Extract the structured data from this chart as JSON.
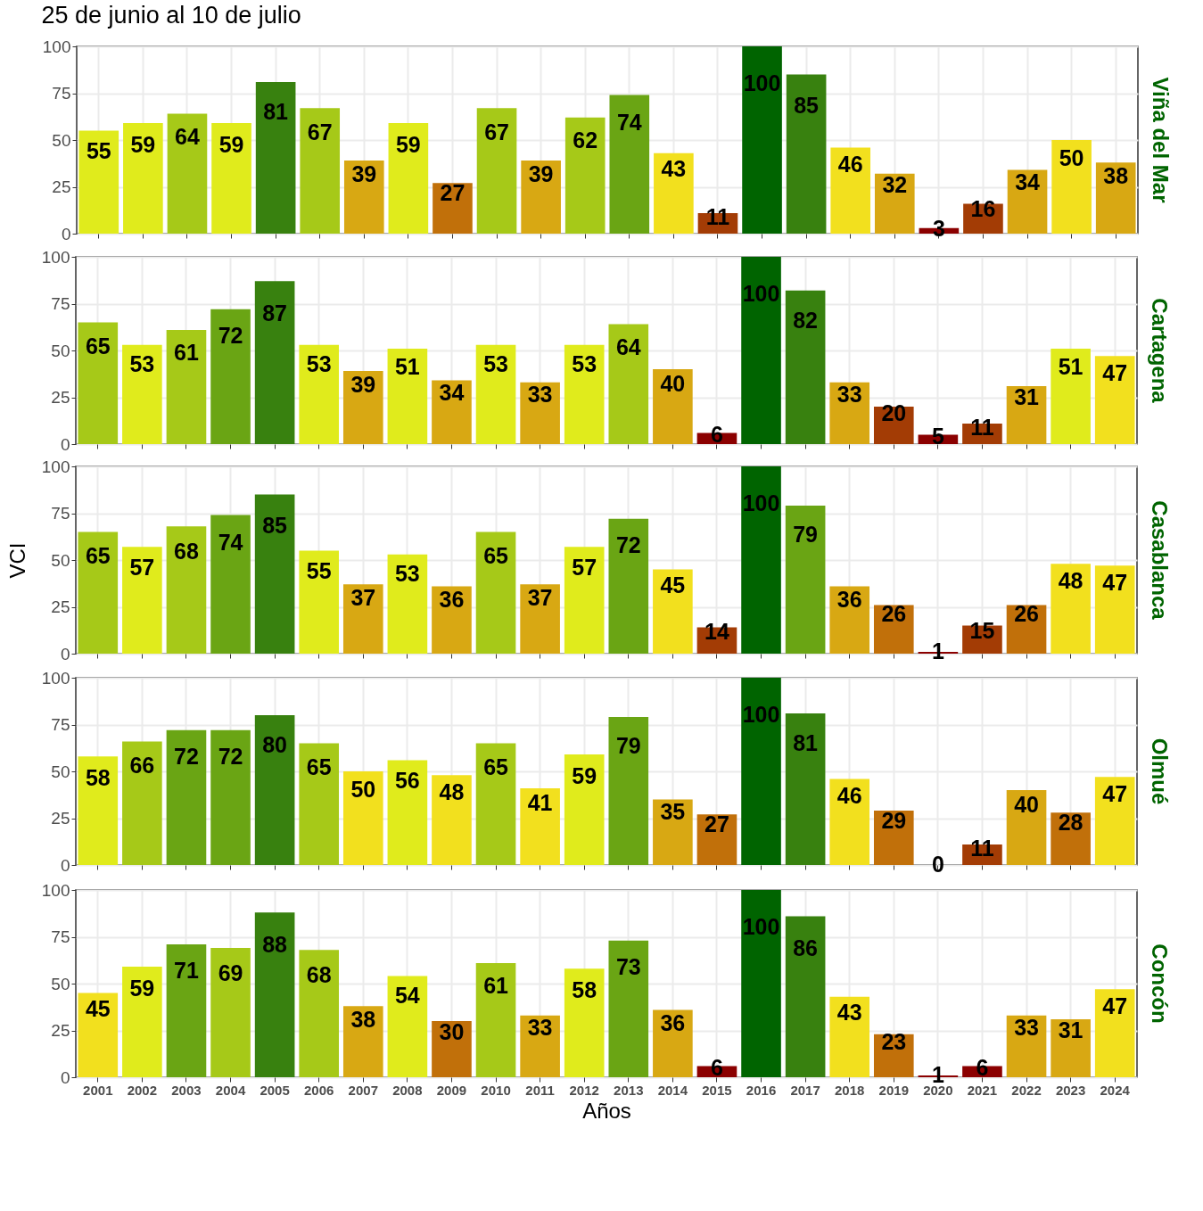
{
  "chart_data": [
    {
      "type": "bar",
      "title": "25 de junio al 10 de julio",
      "subtitle": "Viña del Mar",
      "categories": [
        "2001",
        "2002",
        "2003",
        "2004",
        "2005",
        "2006",
        "2007",
        "2008",
        "2009",
        "2010",
        "2011",
        "2012",
        "2013",
        "2014",
        "2015",
        "2016",
        "2017",
        "2018",
        "2019",
        "2020",
        "2021",
        "2022",
        "2023",
        "2024"
      ],
      "values": [
        55,
        59,
        64,
        59,
        81,
        67,
        39,
        59,
        27,
        67,
        39,
        62,
        74,
        43,
        11,
        100,
        85,
        46,
        32,
        3,
        16,
        34,
        50,
        38
      ],
      "colors": [
        "#e0eb1c",
        "#e0eb1c",
        "#a6c918",
        "#e0eb1c",
        "#38810f",
        "#a6c918",
        "#d8a813",
        "#e0eb1c",
        "#c1700a",
        "#a6c918",
        "#d8a813",
        "#a6c918",
        "#6aa514",
        "#f2e01e",
        "#a33c05",
        "#006400",
        "#38810f",
        "#f2e01e",
        "#d8a813",
        "#8b0000",
        "#a33c05",
        "#d8a813",
        "#f2e01e",
        "#d8a813"
      ],
      "ylim": [
        0,
        100
      ],
      "yticks": [
        0,
        25,
        50,
        75,
        100
      ],
      "grid": true,
      "data_labels": true,
      "tick_labels": "y"
    },
    {
      "type": "bar",
      "subtitle": "Cartagena",
      "categories": [
        "2001",
        "2002",
        "2003",
        "2004",
        "2005",
        "2006",
        "2007",
        "2008",
        "2009",
        "2010",
        "2011",
        "2012",
        "2013",
        "2014",
        "2015",
        "2016",
        "2017",
        "2018",
        "2019",
        "2020",
        "2021",
        "2022",
        "2023",
        "2024"
      ],
      "values": [
        65,
        53,
        61,
        72,
        87,
        53,
        39,
        51,
        34,
        53,
        33,
        53,
        64,
        40,
        6,
        100,
        82,
        33,
        20,
        5,
        11,
        31,
        51,
        47
      ],
      "colors": [
        "#a6c918",
        "#e0eb1c",
        "#a6c918",
        "#6aa514",
        "#38810f",
        "#e0eb1c",
        "#d8a813",
        "#e0eb1c",
        "#d8a813",
        "#e0eb1c",
        "#d8a813",
        "#e0eb1c",
        "#a6c918",
        "#d8a813",
        "#8b0000",
        "#006400",
        "#38810f",
        "#d8a813",
        "#a33c05",
        "#8b0000",
        "#a33c05",
        "#d8a813",
        "#e0eb1c",
        "#f2e01e"
      ],
      "ylim": [
        0,
        100
      ],
      "yticks": [
        0,
        25,
        50,
        75,
        100
      ],
      "grid": true,
      "data_labels": true,
      "tick_labels": "y"
    },
    {
      "type": "bar",
      "subtitle": "Casablanca",
      "ylabel": "VCI",
      "categories": [
        "2001",
        "2002",
        "2003",
        "2004",
        "2005",
        "2006",
        "2007",
        "2008",
        "2009",
        "2010",
        "2011",
        "2012",
        "2013",
        "2014",
        "2015",
        "2016",
        "2017",
        "2018",
        "2019",
        "2020",
        "2021",
        "2022",
        "2023",
        "2024"
      ],
      "values": [
        65,
        57,
        68,
        74,
        85,
        55,
        37,
        53,
        36,
        65,
        37,
        57,
        72,
        45,
        14,
        100,
        79,
        36,
        26,
        1,
        15,
        26,
        48,
        47
      ],
      "colors": [
        "#a6c918",
        "#e0eb1c",
        "#a6c918",
        "#6aa514",
        "#38810f",
        "#e0eb1c",
        "#d8a813",
        "#e0eb1c",
        "#d8a813",
        "#a6c918",
        "#d8a813",
        "#e0eb1c",
        "#6aa514",
        "#f2e01e",
        "#a33c05",
        "#006400",
        "#6aa514",
        "#d8a813",
        "#c1700a",
        "#8b0000",
        "#a33c05",
        "#c1700a",
        "#f2e01e",
        "#f2e01e"
      ],
      "ylim": [
        0,
        100
      ],
      "yticks": [
        0,
        25,
        50,
        75,
        100
      ],
      "grid": true,
      "data_labels": true,
      "tick_labels": "y"
    },
    {
      "type": "bar",
      "subtitle": "Olmué",
      "categories": [
        "2001",
        "2002",
        "2003",
        "2004",
        "2005",
        "2006",
        "2007",
        "2008",
        "2009",
        "2010",
        "2011",
        "2012",
        "2013",
        "2014",
        "2015",
        "2016",
        "2017",
        "2018",
        "2019",
        "2020",
        "2021",
        "2022",
        "2023",
        "2024"
      ],
      "values": [
        58,
        66,
        72,
        72,
        80,
        65,
        50,
        56,
        48,
        65,
        41,
        59,
        79,
        35,
        27,
        100,
        81,
        46,
        29,
        0,
        11,
        40,
        28,
        47
      ],
      "colors": [
        "#e0eb1c",
        "#a6c918",
        "#6aa514",
        "#6aa514",
        "#38810f",
        "#a6c918",
        "#f2e01e",
        "#e0eb1c",
        "#f2e01e",
        "#a6c918",
        "#f2e01e",
        "#e0eb1c",
        "#6aa514",
        "#d8a813",
        "#c1700a",
        "#006400",
        "#38810f",
        "#f2e01e",
        "#c1700a",
        "#8b0000",
        "#a33c05",
        "#d8a813",
        "#c1700a",
        "#f2e01e"
      ],
      "ylim": [
        0,
        100
      ],
      "yticks": [
        0,
        25,
        50,
        75,
        100
      ],
      "grid": true,
      "data_labels": true,
      "tick_labels": "y"
    },
    {
      "type": "bar",
      "subtitle": "Concón",
      "xlabel": "Años",
      "categories": [
        "2001",
        "2002",
        "2003",
        "2004",
        "2005",
        "2006",
        "2007",
        "2008",
        "2009",
        "2010",
        "2011",
        "2012",
        "2013",
        "2014",
        "2015",
        "2016",
        "2017",
        "2018",
        "2019",
        "2020",
        "2021",
        "2022",
        "2023",
        "2024"
      ],
      "values": [
        45,
        59,
        71,
        69,
        88,
        68,
        38,
        54,
        30,
        61,
        33,
        58,
        73,
        36,
        6,
        100,
        86,
        43,
        23,
        1,
        6,
        33,
        31,
        47
      ],
      "colors": [
        "#f2e01e",
        "#e0eb1c",
        "#6aa514",
        "#a6c918",
        "#38810f",
        "#a6c918",
        "#d8a813",
        "#e0eb1c",
        "#c1700a",
        "#a6c918",
        "#d8a813",
        "#e0eb1c",
        "#6aa514",
        "#d8a813",
        "#8b0000",
        "#006400",
        "#38810f",
        "#f2e01e",
        "#c1700a",
        "#8b0000",
        "#8b0000",
        "#d8a813",
        "#d8a813",
        "#f2e01e"
      ],
      "ylim": [
        0,
        100
      ],
      "yticks": [
        0,
        25,
        50,
        75,
        100
      ],
      "grid": true,
      "data_labels": true
    }
  ]
}
